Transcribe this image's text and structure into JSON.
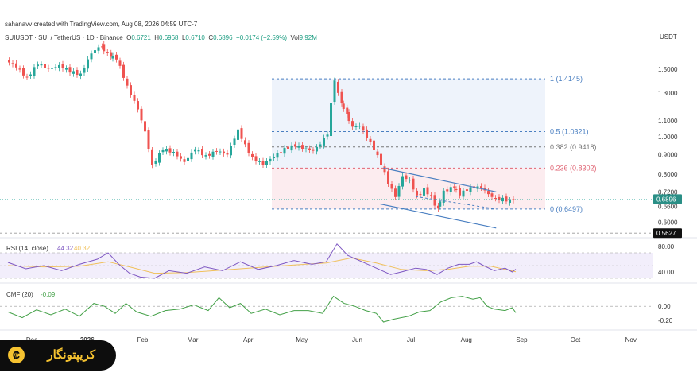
{
  "header": {
    "credit": "sahanavv created with TradingView.com, Aug 08, 2026 04:59 UTC-7",
    "symbol": "SUIUSDT · SUI / TetherUS · 1D · Binance",
    "ohlc": {
      "o_label": "O",
      "o": "0.6721",
      "h_label": "H",
      "h": "0.6968",
      "l_label": "L",
      "l": "0.6710",
      "c_label": "C",
      "c": "0.6896",
      "change": "+0.0174 (+2.59%)",
      "vol_label": "Vol",
      "vol": "9.92M"
    },
    "currency": "USDT"
  },
  "colors": {
    "up": "#26a69a",
    "down": "#ef5350",
    "fib_blue": "#4a7fc1",
    "fib_red": "#e06675",
    "fib_gray": "#777777",
    "channel": "#4a7fc1",
    "rsi": "#7e57c2",
    "rsi_ma": "#f0c05a",
    "cmf": "#43a047",
    "price_badge": "#2a8f86",
    "low_badge": "#111111"
  },
  "chart_data": {
    "type": "line",
    "title": "SUIUSDT · SUI / TetherUS · 1D · Binance",
    "y_scale": "log",
    "ylim": [
      0.55,
      1.72
    ],
    "x_ticks": [
      "Dec",
      "2026",
      "Feb",
      "Mar",
      "Apr",
      "May",
      "Jun",
      "Jul",
      "Aug",
      "Sep",
      "Oct",
      "Nov"
    ],
    "y_ticks": [
      "1.5000",
      "1.3000",
      "1.1000",
      "1.0000",
      "0.9000",
      "0.8000",
      "0.7200",
      "0.6600",
      "0.6000"
    ],
    "price_path": {
      "x_start": "2025-12-01",
      "points": [
        [
          0,
          1.58
        ],
        [
          6,
          1.52
        ],
        [
          12,
          1.42
        ],
        [
          18,
          1.55
        ],
        [
          24,
          1.5
        ],
        [
          30,
          1.53
        ],
        [
          36,
          1.48
        ],
        [
          42,
          1.45
        ],
        [
          48,
          1.65
        ],
        [
          53,
          1.72
        ],
        [
          58,
          1.62
        ],
        [
          62,
          1.6
        ],
        [
          68,
          1.35
        ],
        [
          74,
          1.18
        ],
        [
          78,
          1.03
        ],
        [
          82,
          0.84
        ],
        [
          88,
          0.93
        ],
        [
          94,
          0.91
        ],
        [
          100,
          0.86
        ],
        [
          106,
          0.93
        ],
        [
          112,
          0.89
        ],
        [
          118,
          0.92
        ],
        [
          124,
          0.9
        ],
        [
          130,
          1.04
        ],
        [
          134,
          0.95
        ],
        [
          138,
          0.88
        ],
        [
          144,
          0.85
        ],
        [
          150,
          0.89
        ],
        [
          156,
          0.93
        ],
        [
          162,
          0.95
        ],
        [
          168,
          0.93
        ],
        [
          172,
          0.92
        ],
        [
          176,
          0.96
        ],
        [
          180,
          1.02
        ],
        [
          184,
          1.41
        ],
        [
          187,
          1.23
        ],
        [
          190,
          1.15
        ],
        [
          194,
          1.06
        ],
        [
          198,
          1.07
        ],
        [
          202,
          1.0
        ],
        [
          206,
          0.93
        ],
        [
          210,
          0.85
        ],
        [
          214,
          0.76
        ],
        [
          218,
          0.7
        ],
        [
          222,
          0.79
        ],
        [
          226,
          0.77
        ],
        [
          230,
          0.7
        ],
        [
          234,
          0.73
        ],
        [
          238,
          0.7
        ],
        [
          241,
          0.65
        ],
        [
          245,
          0.72
        ],
        [
          250,
          0.74
        ],
        [
          254,
          0.71
        ],
        [
          258,
          0.73
        ],
        [
          262,
          0.74
        ],
        [
          266,
          0.74
        ],
        [
          270,
          0.71
        ],
        [
          274,
          0.69
        ],
        [
          278,
          0.69
        ],
        [
          282,
          0.68
        ],
        [
          284,
          0.6896
        ]
      ]
    },
    "last_price": "0.6896",
    "low_level": "0.5627",
    "fib_levels": [
      {
        "label": "1 (1.4145)",
        "value": 1.4145,
        "color": "fib_blue"
      },
      {
        "label": "0.5 (1.0321)",
        "value": 1.0321,
        "color": "fib_blue"
      },
      {
        "label": "0.382 (0.9418)",
        "value": 0.9418,
        "color": "fib_gray"
      },
      {
        "label": "0.236 (0.8302)",
        "value": 0.8302,
        "color": "fib_red"
      },
      {
        "label": "0 (0.6497)",
        "value": 0.6497,
        "color": "fib_blue"
      }
    ],
    "channel": {
      "upper": [
        [
          210,
          0.83
        ],
        [
          273,
          0.72
        ]
      ],
      "lower": [
        [
          208,
          0.67
        ],
        [
          273,
          0.58
        ]
      ],
      "mid": [
        [
          228,
          0.7
        ],
        [
          273,
          0.65
        ]
      ]
    },
    "rsi": {
      "label": "RSI (14, close)",
      "value1": "44.32",
      "value2": "40.32",
      "ylim": [
        25,
        90
      ],
      "ticks": [
        "80.00",
        "40.00"
      ],
      "band": [
        30,
        70
      ],
      "points": [
        [
          0,
          55
        ],
        [
          10,
          45
        ],
        [
          20,
          50
        ],
        [
          30,
          42
        ],
        [
          40,
          52
        ],
        [
          50,
          60
        ],
        [
          56,
          70
        ],
        [
          62,
          52
        ],
        [
          68,
          38
        ],
        [
          74,
          32
        ],
        [
          82,
          30
        ],
        [
          90,
          42
        ],
        [
          100,
          38
        ],
        [
          110,
          48
        ],
        [
          120,
          42
        ],
        [
          130,
          56
        ],
        [
          140,
          44
        ],
        [
          150,
          50
        ],
        [
          160,
          58
        ],
        [
          170,
          52
        ],
        [
          178,
          56
        ],
        [
          184,
          84
        ],
        [
          190,
          66
        ],
        [
          198,
          56
        ],
        [
          206,
          46
        ],
        [
          214,
          36
        ],
        [
          220,
          40
        ],
        [
          228,
          46
        ],
        [
          234,
          44
        ],
        [
          240,
          36
        ],
        [
          246,
          46
        ],
        [
          252,
          52
        ],
        [
          258,
          52
        ],
        [
          262,
          56
        ],
        [
          266,
          50
        ],
        [
          272,
          42
        ],
        [
          278,
          46
        ],
        [
          282,
          40
        ],
        [
          284,
          44.32
        ]
      ],
      "ma_points": [
        [
          0,
          50
        ],
        [
          20,
          48
        ],
        [
          40,
          49
        ],
        [
          56,
          56
        ],
        [
          68,
          48
        ],
        [
          82,
          38
        ],
        [
          100,
          39
        ],
        [
          120,
          43
        ],
        [
          140,
          47
        ],
        [
          160,
          51
        ],
        [
          178,
          54
        ],
        [
          192,
          62
        ],
        [
          206,
          54
        ],
        [
          220,
          44
        ],
        [
          234,
          42
        ],
        [
          246,
          44
        ],
        [
          258,
          49
        ],
        [
          270,
          49
        ],
        [
          284,
          40.32
        ]
      ]
    },
    "cmf": {
      "label": "CMF (20)",
      "value": "-0.09",
      "ylim": [
        -0.32,
        0.28
      ],
      "ticks": [
        "0.00",
        "-0.20"
      ],
      "points": [
        [
          0,
          -0.08
        ],
        [
          8,
          -0.16
        ],
        [
          16,
          -0.05
        ],
        [
          24,
          -0.12
        ],
        [
          32,
          -0.04
        ],
        [
          40,
          -0.14
        ],
        [
          48,
          0.04
        ],
        [
          54,
          0.0
        ],
        [
          60,
          -0.1
        ],
        [
          66,
          0.04
        ],
        [
          72,
          -0.08
        ],
        [
          80,
          -0.14
        ],
        [
          88,
          -0.06
        ],
        [
          96,
          -0.04
        ],
        [
          104,
          0.02
        ],
        [
          112,
          -0.06
        ],
        [
          118,
          0.12
        ],
        [
          124,
          -0.02
        ],
        [
          130,
          0.04
        ],
        [
          136,
          -0.1
        ],
        [
          144,
          -0.04
        ],
        [
          152,
          -0.12
        ],
        [
          160,
          -0.06
        ],
        [
          168,
          -0.06
        ],
        [
          176,
          -0.1
        ],
        [
          182,
          0.14
        ],
        [
          188,
          0.04
        ],
        [
          194,
          0.0
        ],
        [
          200,
          -0.06
        ],
        [
          206,
          -0.1
        ],
        [
          210,
          -0.22
        ],
        [
          216,
          -0.18
        ],
        [
          224,
          -0.14
        ],
        [
          230,
          -0.08
        ],
        [
          236,
          -0.06
        ],
        [
          242,
          0.06
        ],
        [
          248,
          0.12
        ],
        [
          254,
          0.14
        ],
        [
          260,
          0.1
        ],
        [
          264,
          0.12
        ],
        [
          268,
          0.0
        ],
        [
          272,
          -0.04
        ],
        [
          278,
          -0.06
        ],
        [
          282,
          -0.02
        ],
        [
          284,
          -0.09
        ]
      ]
    }
  },
  "badge": {
    "brand": "کریپتونگار",
    "logo_glyph": "₡"
  }
}
